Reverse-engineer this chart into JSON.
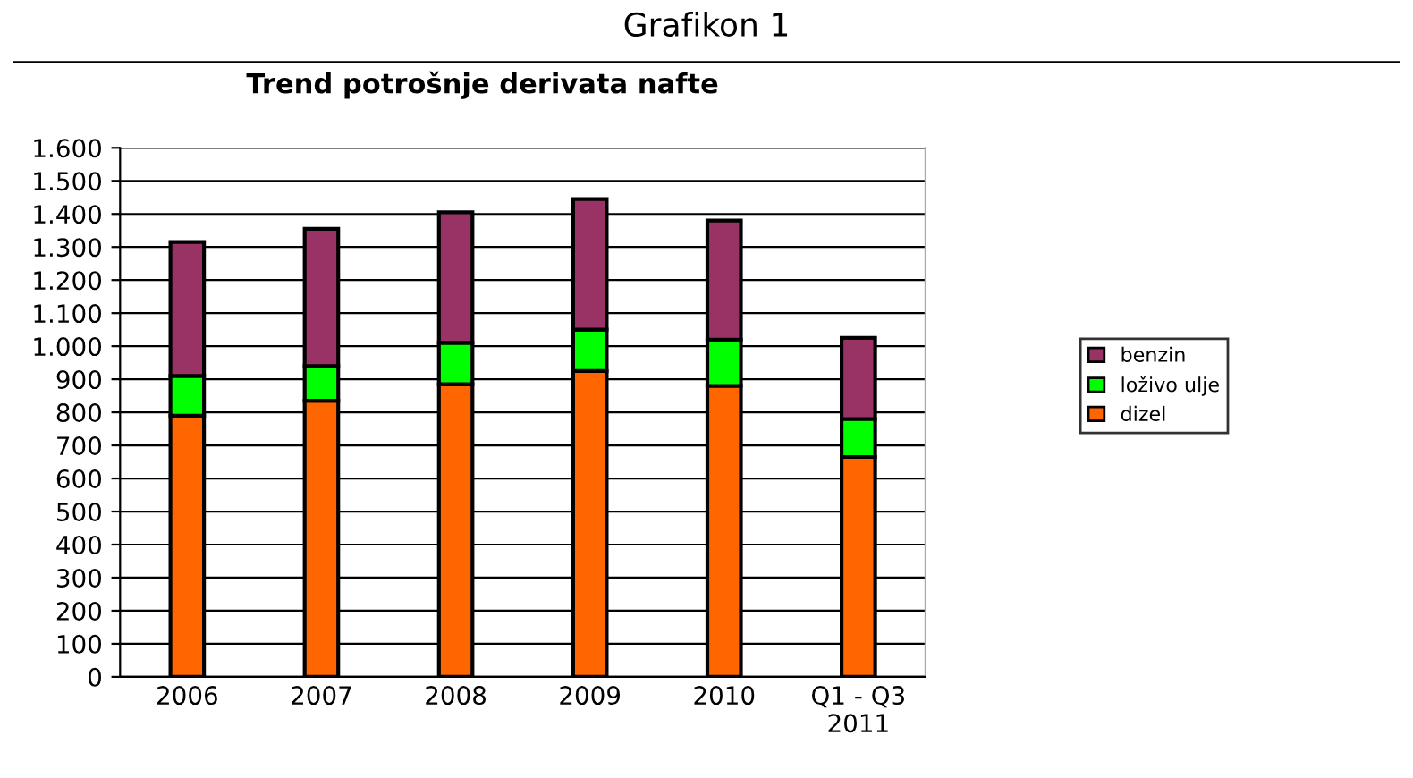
{
  "chart_data": {
    "type": "bar",
    "stacked": true,
    "title": "Trend potrošnje derivata nafte",
    "annotations": [
      "Grafikon 1"
    ],
    "categories": [
      "2006",
      "2007",
      "2008",
      "2009",
      "2010",
      "Q1 - Q3\n2011"
    ],
    "series": [
      {
        "name": "dizel",
        "color": "#ff6600",
        "values": [
          790,
          835,
          885,
          925,
          880,
          665
        ]
      },
      {
        "name": "loživo ulje",
        "color": "#00ff00",
        "values": [
          120,
          105,
          125,
          125,
          140,
          115
        ]
      },
      {
        "name": "benzin",
        "color": "#993366",
        "values": [
          405,
          415,
          395,
          395,
          360,
          245
        ]
      }
    ],
    "ylim": [
      0,
      1600
    ],
    "yticks": [
      0,
      100,
      200,
      300,
      400,
      500,
      600,
      700,
      800,
      900,
      {
        "value": 1000,
        "label": "1.000"
      },
      {
        "value": 1100,
        "label": "1.100"
      },
      {
        "value": 1200,
        "label": "1.200"
      },
      {
        "value": 1300,
        "label": "1.300"
      },
      {
        "value": 1400,
        "label": "1.400"
      },
      {
        "value": 1500,
        "label": "1.500"
      },
      {
        "value": 1600,
        "label": "1.600"
      }
    ],
    "grid": "y",
    "legend": "right"
  }
}
